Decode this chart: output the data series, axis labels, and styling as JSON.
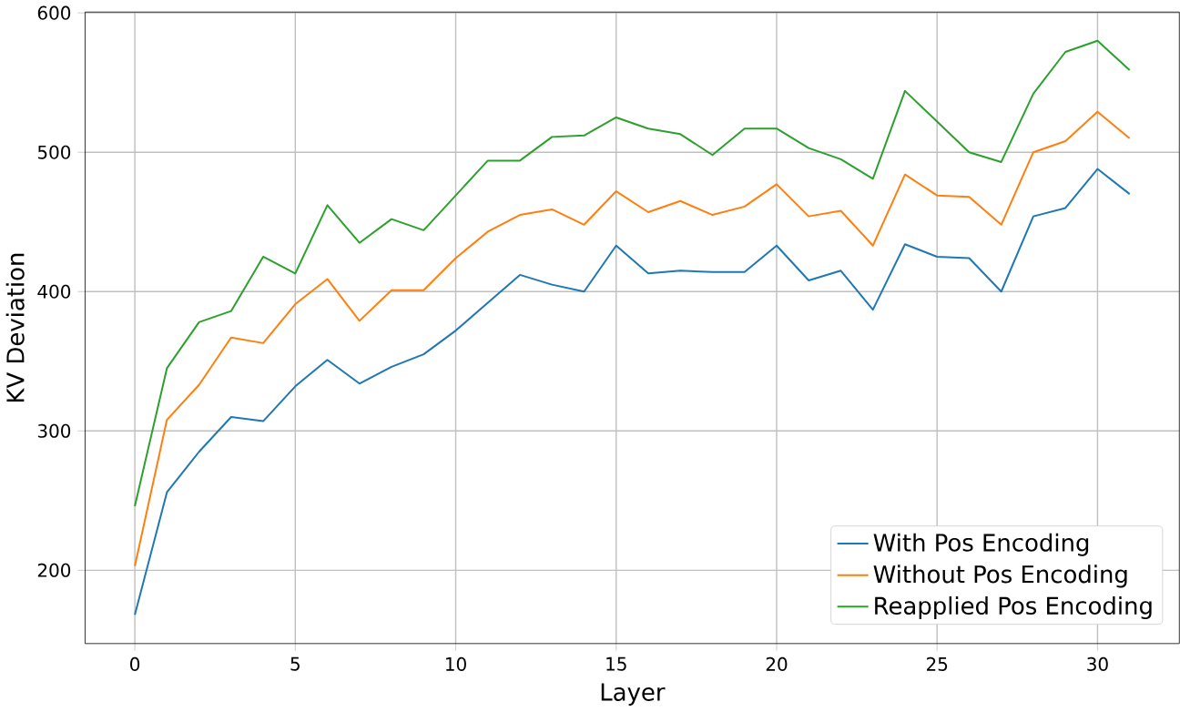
{
  "chart_data": {
    "type": "line",
    "xlabel": "Layer",
    "ylabel": "KV Deviation",
    "x": [
      0,
      1,
      2,
      3,
      4,
      5,
      6,
      7,
      8,
      9,
      10,
      11,
      12,
      13,
      14,
      15,
      16,
      17,
      18,
      19,
      20,
      21,
      22,
      23,
      24,
      25,
      26,
      27,
      28,
      29,
      30,
      31
    ],
    "series": [
      {
        "name": "With Pos Encoding",
        "color": "#1f77b4",
        "values": [
          168,
          256,
          285,
          310,
          307,
          332,
          351,
          334,
          346,
          355,
          372,
          392,
          412,
          405,
          400,
          433,
          413,
          415,
          414,
          414,
          433,
          408,
          415,
          387,
          434,
          425,
          424,
          400,
          454,
          460,
          488,
          470
        ]
      },
      {
        "name": "Without Pos Encoding",
        "color": "#ff7f0e",
        "values": [
          203,
          308,
          333,
          367,
          363,
          391,
          409,
          379,
          401,
          401,
          424,
          443,
          455,
          459,
          448,
          472,
          457,
          465,
          455,
          461,
          477,
          454,
          458,
          433,
          484,
          469,
          468,
          448,
          500,
          508,
          529,
          510
        ]
      },
      {
        "name": "Reapplied Pos Encoding",
        "color": "#2ca02c",
        "values": [
          246,
          345,
          378,
          386,
          425,
          413,
          462,
          435,
          452,
          444,
          469,
          494,
          494,
          511,
          512,
          525,
          517,
          513,
          498,
          517,
          517,
          503,
          495,
          481,
          544,
          522,
          500,
          493,
          542,
          572,
          580,
          559
        ]
      }
    ],
    "xlim": [
      -1.55,
      32.55
    ],
    "ylim": [
      147.4,
      600.6
    ],
    "xticks": [
      0,
      5,
      10,
      15,
      20,
      25,
      30
    ],
    "yticks": [
      200,
      300,
      400,
      500,
      600
    ],
    "grid": true,
    "legend": "bottom right",
    "marker": "none",
    "line_style": "solid"
  }
}
